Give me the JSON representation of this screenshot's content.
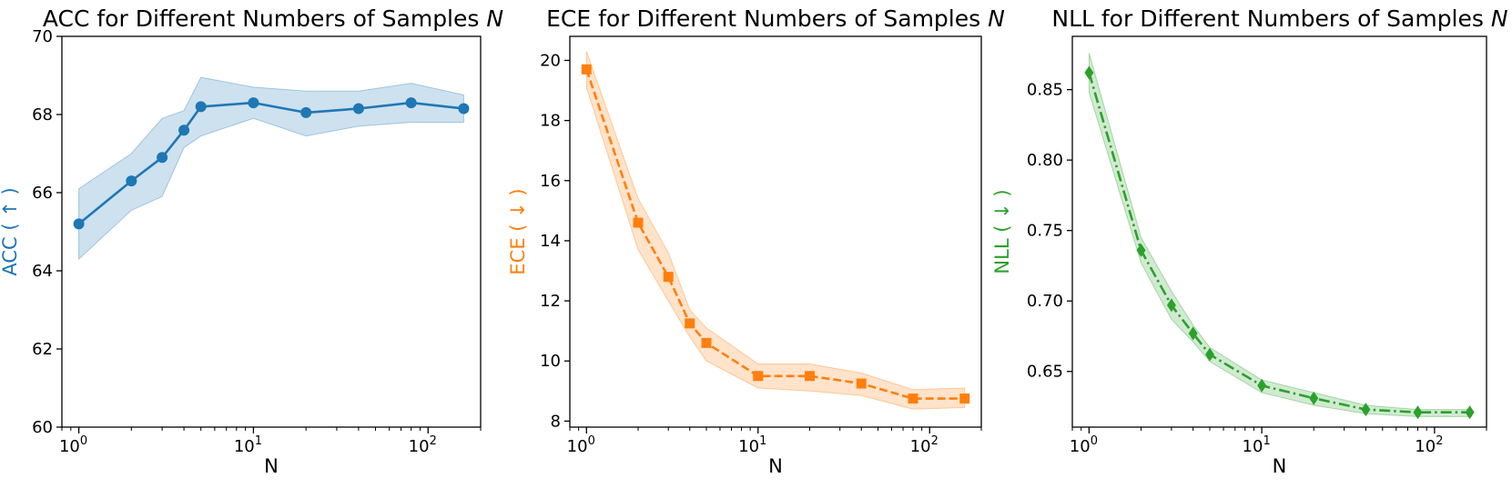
{
  "chart_data": [
    {
      "type": "line",
      "title": "ACC for Different Numbers of Samples",
      "title_var": "N",
      "xlabel": "N",
      "ylabel": "ACC ( ↑ )",
      "xscale": "log",
      "xlim": [
        0.8,
        200
      ],
      "ylim": [
        60,
        70
      ],
      "yticks": [
        "60",
        "62",
        "64",
        "66",
        "68",
        "70"
      ],
      "xtick_base": "10",
      "xtick_exps": [
        "0",
        "1",
        "2"
      ],
      "color": "#1f77b4",
      "marker": "circle",
      "linestyle": "solid",
      "x": [
        1,
        2,
        3,
        4,
        5,
        10,
        20,
        40,
        80,
        160
      ],
      "y": [
        65.2,
        66.3,
        66.9,
        67.6,
        68.2,
        68.3,
        68.05,
        68.15,
        68.3,
        68.15
      ],
      "lower": [
        64.3,
        65.55,
        65.9,
        67.15,
        67.45,
        67.9,
        67.45,
        67.7,
        67.8,
        67.8
      ],
      "upper": [
        66.1,
        67.0,
        67.9,
        68.1,
        68.95,
        68.7,
        68.6,
        68.6,
        68.8,
        68.5
      ]
    },
    {
      "type": "line",
      "title": "ECE for Different Numbers of Samples",
      "title_var": "N",
      "xlabel": "N",
      "ylabel": "ECE ( ↓ )",
      "xscale": "log",
      "xlim": [
        0.8,
        200
      ],
      "ylim": [
        7.8,
        20.8
      ],
      "yticks": [
        "8",
        "10",
        "12",
        "14",
        "16",
        "18",
        "20"
      ],
      "xtick_base": "10",
      "xtick_exps": [
        "0",
        "1",
        "2"
      ],
      "color": "#ff7f0e",
      "marker": "square",
      "linestyle": "dashed",
      "x": [
        1,
        2,
        3,
        4,
        5,
        10,
        20,
        40,
        80,
        160
      ],
      "y": [
        19.7,
        14.6,
        12.8,
        11.25,
        10.6,
        9.5,
        9.5,
        9.25,
        8.75,
        8.75
      ],
      "lower": [
        19.1,
        13.7,
        12.0,
        10.8,
        10.0,
        9.1,
        9.0,
        8.85,
        8.4,
        8.45
      ],
      "upper": [
        20.3,
        15.4,
        13.6,
        11.7,
        11.1,
        9.9,
        9.9,
        9.6,
        9.05,
        9.1
      ]
    },
    {
      "type": "line",
      "title": "NLL for Different Numbers of Samples",
      "title_var": "N",
      "xlabel": "N",
      "ylabel": "NLL ( ↓ )",
      "xscale": "log",
      "xlim": [
        0.8,
        200
      ],
      "ylim": [
        0.6105,
        0.8878
      ],
      "yticks": [
        "0.65",
        "0.70",
        "0.75",
        "0.80",
        "0.85"
      ],
      "xtick_base": "10",
      "xtick_exps": [
        "0",
        "1",
        "2"
      ],
      "color": "#2ca02c",
      "marker": "diamond",
      "linestyle": "dashdot",
      "x": [
        1,
        2,
        3,
        4,
        5,
        10,
        20,
        40,
        80,
        160
      ],
      "y": [
        0.862,
        0.736,
        0.697,
        0.677,
        0.662,
        0.64,
        0.631,
        0.623,
        0.621,
        0.621
      ],
      "lower": [
        0.848,
        0.727,
        0.687,
        0.671,
        0.657,
        0.635,
        0.626,
        0.62,
        0.618,
        0.618
      ],
      "upper": [
        0.876,
        0.745,
        0.707,
        0.683,
        0.667,
        0.644,
        0.635,
        0.626,
        0.623,
        0.623
      ]
    }
  ]
}
